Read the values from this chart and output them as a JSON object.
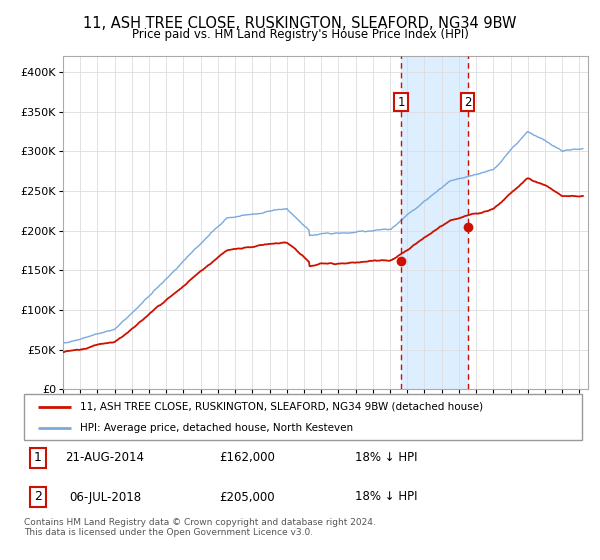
{
  "title": "11, ASH TREE CLOSE, RUSKINGTON, SLEAFORD, NG34 9BW",
  "subtitle": "Price paid vs. HM Land Registry's House Price Index (HPI)",
  "hpi_label": "HPI: Average price, detached house, North Kesteven",
  "property_label": "11, ASH TREE CLOSE, RUSKINGTON, SLEAFORD, NG34 9BW (detached house)",
  "hpi_color": "#7aaadd",
  "property_color": "#cc1100",
  "marker_color": "#cc1100",
  "background_fill": "#ddeeff",
  "ylim": [
    0,
    420000
  ],
  "yticks": [
    0,
    50000,
    100000,
    150000,
    200000,
    250000,
    300000,
    350000,
    400000
  ],
  "ytick_labels": [
    "£0",
    "£50K",
    "£100K",
    "£150K",
    "£200K",
    "£250K",
    "£300K",
    "£350K",
    "£400K"
  ],
  "sale1_date": "21-AUG-2014",
  "sale1_price": 162000,
  "sale1_x": 2014.64,
  "sale2_date": "06-JUL-2018",
  "sale2_price": 205000,
  "sale2_x": 2018.51,
  "hpi_pct1": "18%",
  "hpi_pct2": "18%",
  "footer": "Contains HM Land Registry data © Crown copyright and database right 2024.\nThis data is licensed under the Open Government Licence v3.0.",
  "sale_box_color": "#cc1100",
  "legend_border_color": "#999999",
  "grid_color": "#dddddd",
  "spine_color": "#aaaaaa"
}
